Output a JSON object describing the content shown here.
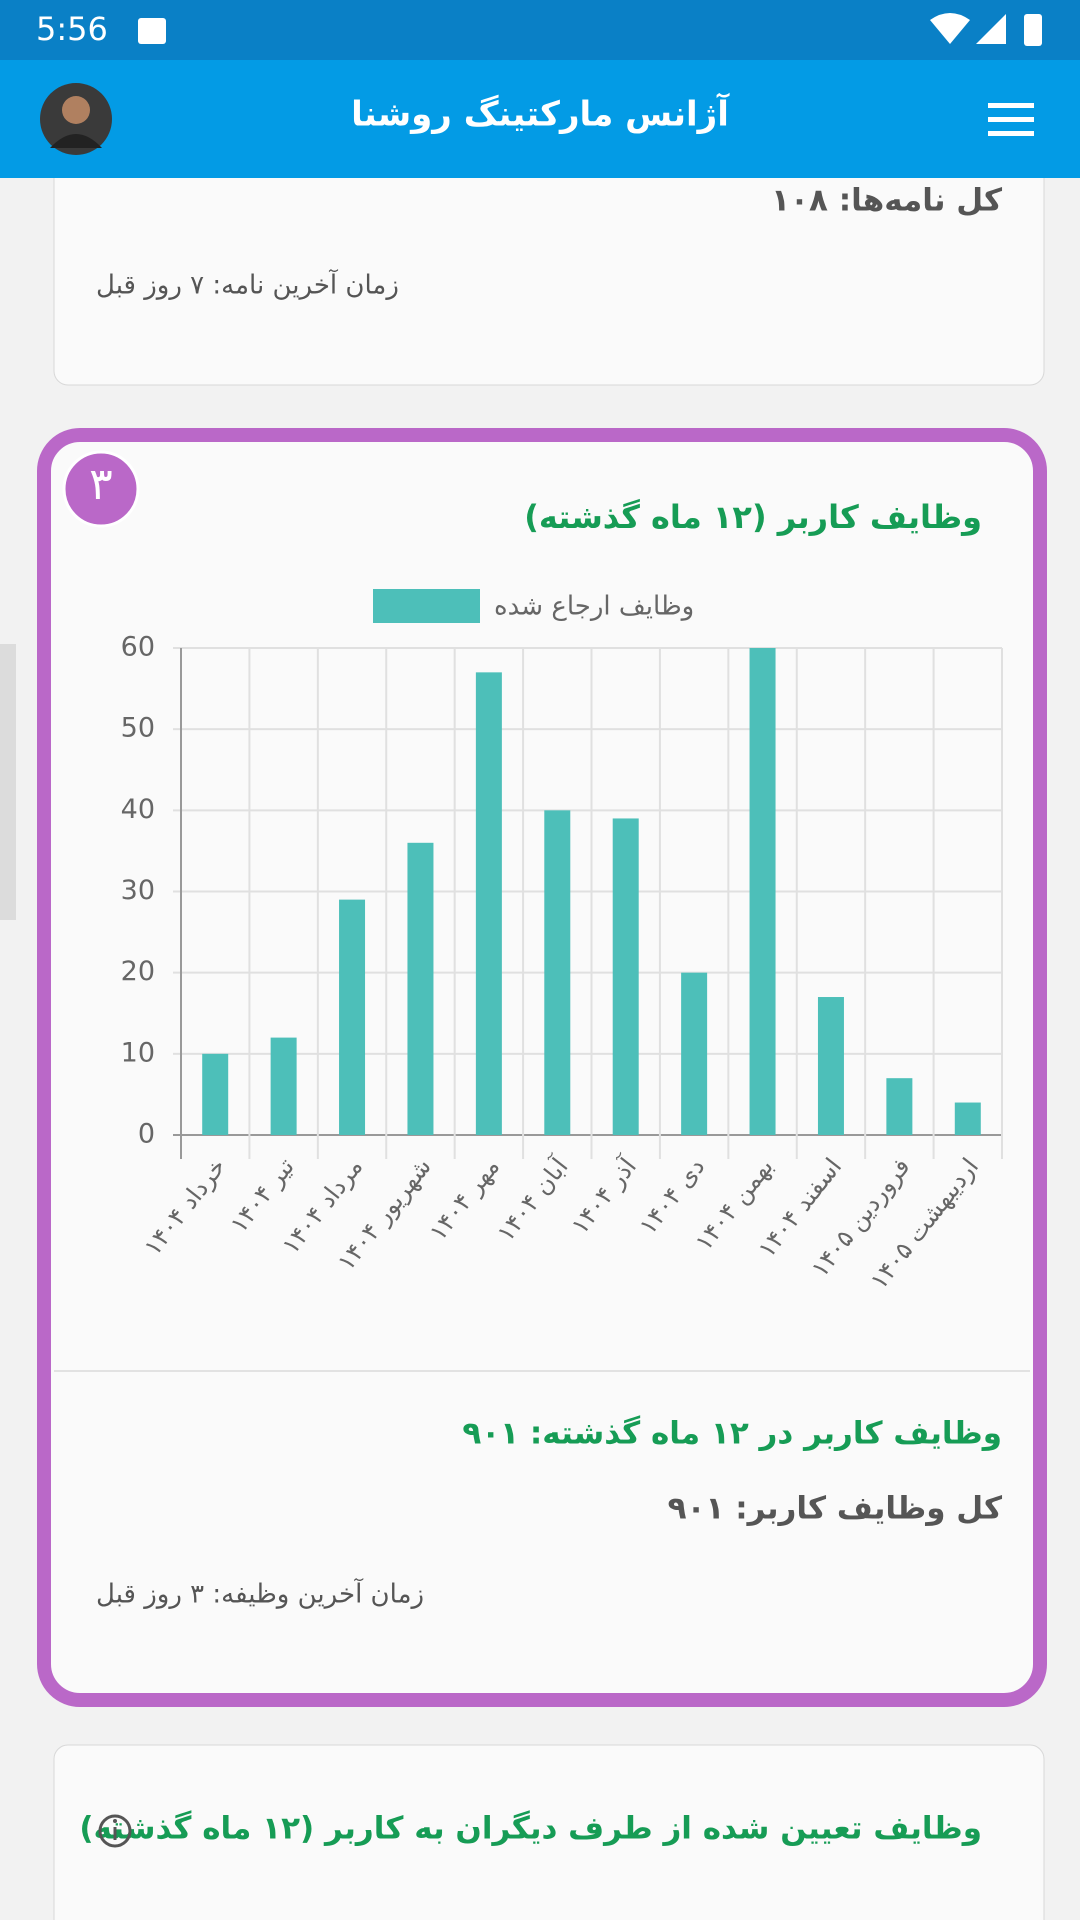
{
  "status_bar": {
    "time": "5:56"
  },
  "app_bar": {
    "title": "آژانس مارکتینگ روشنا"
  },
  "letters_card": {
    "total": "کل نامه‌ها: ۱۰۸",
    "last": "زمان آخرین نامه: ۷ روز قبل"
  },
  "tasks_card": {
    "badge": "۳",
    "summary": "وظایف کاربر در ۱۲ ماه گذشته: ۹۰۱",
    "total": "کل وظایف کاربر: ۹۰۱",
    "last": "زمان آخرین وظیفه: ۳ روز قبل"
  },
  "chart_data": {
    "type": "bar",
    "title": "وظایف کاربر (۱۲ ماه گذشته)",
    "categories": [
      "خرداد ۱۴۰۴",
      "تیر ۱۴۰۴",
      "مرداد ۱۴۰۴",
      "شهریور ۱۴۰۴",
      "مهر ۱۴۰۴",
      "آبان ۱۴۰۴",
      "آذر ۱۴۰۴",
      "دی ۱۴۰۴",
      "بهمن ۱۴۰۴",
      "اسفند ۱۴۰۴",
      "فروردین ۱۴۰۵",
      "اردیبهشت ۱۴۰۵"
    ],
    "series": [
      {
        "name": "وظایف ارجاع شده",
        "color": "#4dbfb9",
        "values": [
          10,
          12,
          29,
          36,
          57,
          40,
          39,
          20,
          60,
          17,
          7,
          4
        ]
      }
    ],
    "ylim": [
      0,
      60
    ],
    "yticks": [
      0,
      10,
      20,
      30,
      40,
      50,
      60
    ],
    "grid": true
  },
  "assigned_card": {
    "title": "وظایف تعیین شده از طرف دیگران به کاربر (۱۲ ماه گذشته)"
  }
}
